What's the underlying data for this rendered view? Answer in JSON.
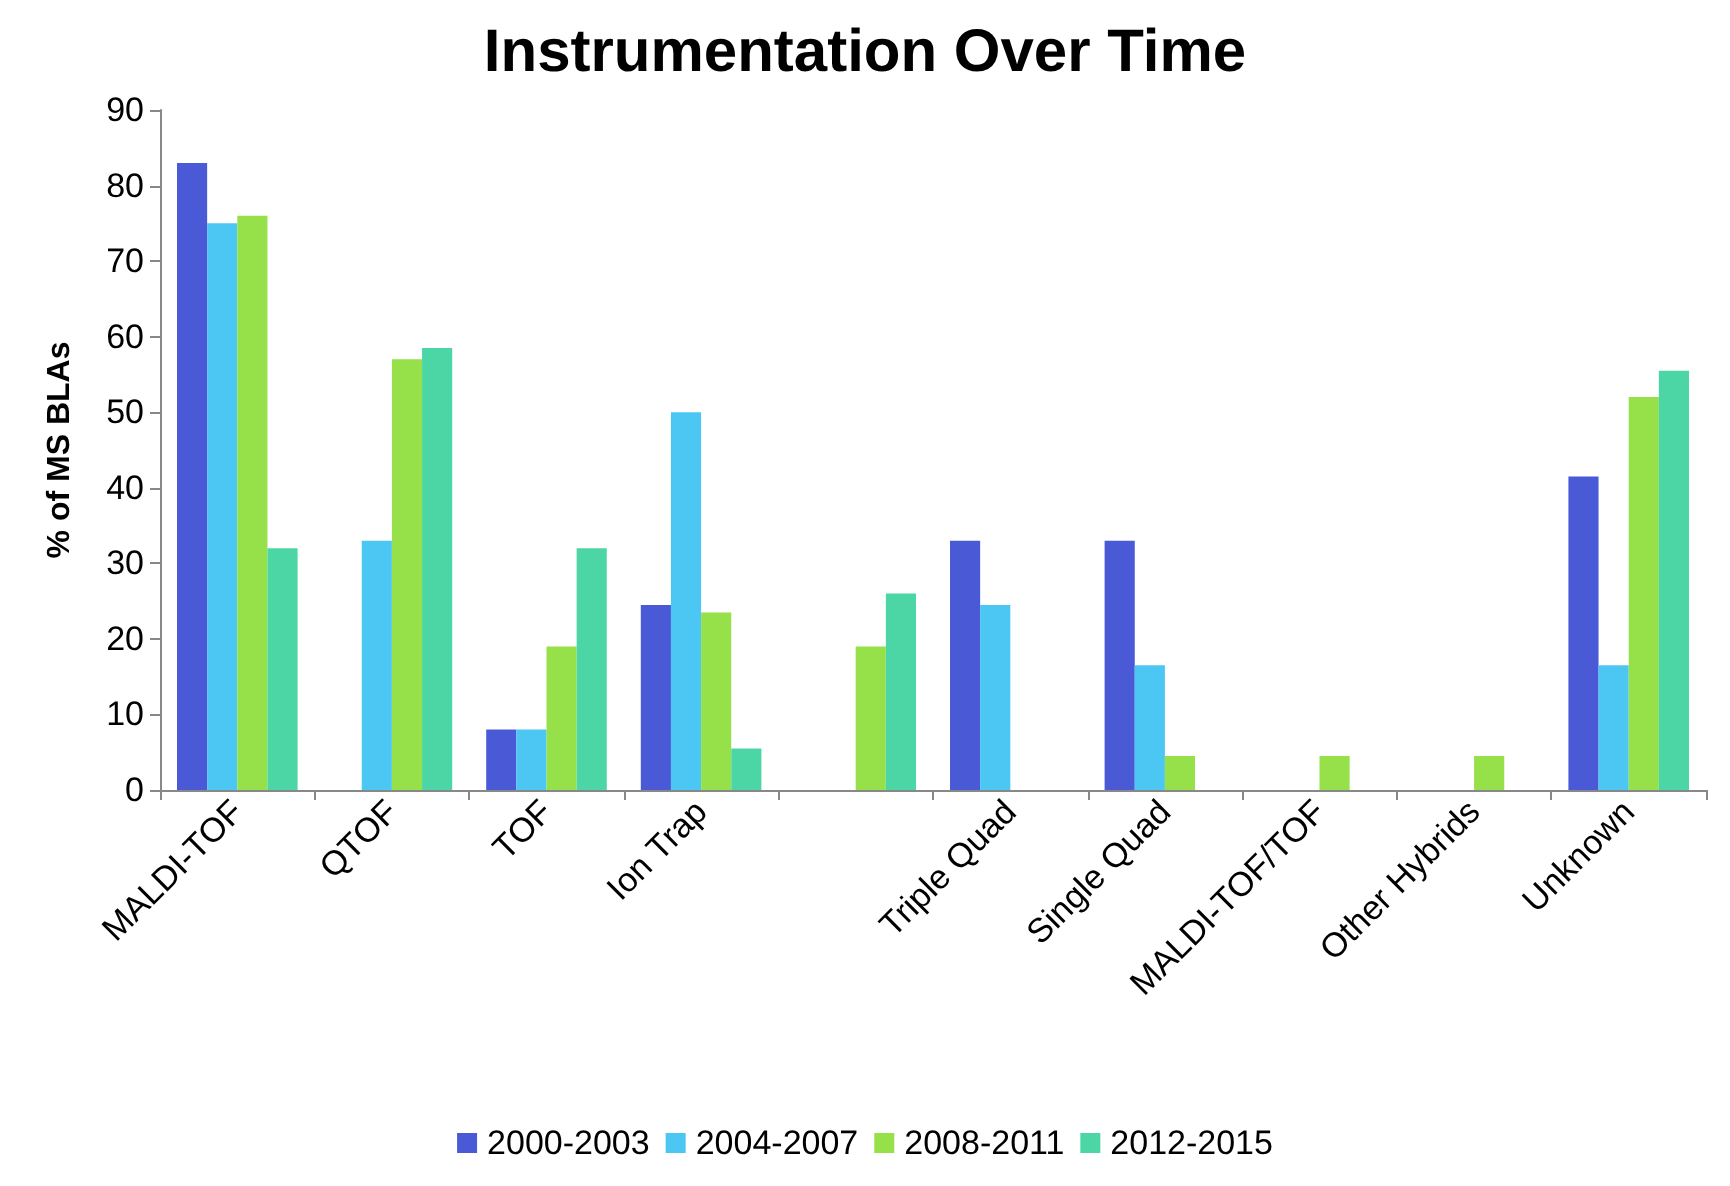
{
  "chart_data": {
    "type": "bar",
    "title": "Instrumentation Over Time",
    "ylabel": "% of MS BLAs",
    "categories": [
      "MALDI-TOF",
      "QTOF",
      "TOF",
      "Ion Trap",
      null,
      "Triple Quad",
      "Single Quad",
      "MALDI-TOF/TOF",
      "Other Hybrids",
      "Unknown"
    ],
    "series": [
      {
        "name": "2000-2003",
        "color": "#4a5ad6",
        "values": [
          83,
          0,
          8,
          24.5,
          0,
          33,
          33,
          0,
          0,
          41.5
        ]
      },
      {
        "name": "2004-2007",
        "color": "#4cc6f2",
        "values": [
          75,
          33,
          8,
          50,
          0,
          24.5,
          16.5,
          0,
          0,
          16.5
        ]
      },
      {
        "name": "2008-2011",
        "color": "#96e04a",
        "values": [
          76,
          57,
          19,
          23.5,
          19,
          0,
          4.5,
          4.5,
          4.5,
          52
        ]
      },
      {
        "name": "2012-2015",
        "color": "#4cd6a6",
        "values": [
          32,
          58.5,
          32,
          5.5,
          26,
          0,
          0,
          0,
          0,
          55.5
        ]
      }
    ],
    "ylim": [
      0,
      90
    ],
    "yticks": [
      0,
      10,
      20,
      30,
      40,
      50,
      60,
      70,
      80,
      90
    ],
    "grid": false,
    "legend": "bottom"
  }
}
